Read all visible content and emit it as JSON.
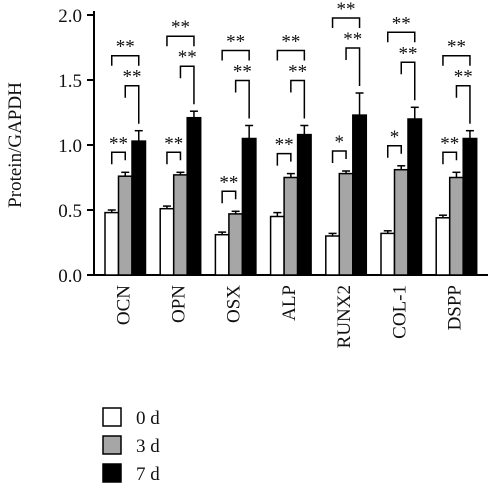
{
  "chart_data": {
    "type": "bar",
    "ylabel": "Protein/GAPDH",
    "xlabel": "",
    "ylim": [
      0,
      2.0
    ],
    "yticks": [
      "0.0",
      "0.5",
      "1.0",
      "1.5",
      "2.0"
    ],
    "categories": [
      "OCN",
      "OPN",
      "OSX",
      "ALP",
      "RUNX2",
      "COL-1",
      "DSPP"
    ],
    "series": [
      {
        "name": "0 d",
        "color": "#ffffff",
        "values": [
          0.48,
          0.51,
          0.31,
          0.45,
          0.3,
          0.32,
          0.44
        ],
        "errors": [
          0.02,
          0.02,
          0.02,
          0.03,
          0.02,
          0.02,
          0.02
        ]
      },
      {
        "name": "3 d",
        "color": "#a6a6a6",
        "values": [
          0.76,
          0.77,
          0.47,
          0.75,
          0.78,
          0.81,
          0.75
        ],
        "errors": [
          0.03,
          0.02,
          0.02,
          0.03,
          0.02,
          0.03,
          0.04
        ]
      },
      {
        "name": "7 d",
        "color": "#000000",
        "values": [
          1.03,
          1.21,
          1.05,
          1.08,
          1.23,
          1.2,
          1.05
        ],
        "errors": [
          0.08,
          0.05,
          0.1,
          0.07,
          0.17,
          0.09,
          0.06
        ]
      }
    ],
    "significance": [
      {
        "short": "**",
        "short2": "**",
        "long": "**"
      },
      {
        "short": "**",
        "short2": "**",
        "long": "**"
      },
      {
        "short": "**",
        "short2": "**",
        "long": "**"
      },
      {
        "short": "**",
        "short2": "**",
        "long": "**"
      },
      {
        "short": "*",
        "short2": "**",
        "long": "**"
      },
      {
        "short": "*",
        "short2": "**",
        "long": "**"
      },
      {
        "short": "**",
        "short2": "**",
        "long": "**"
      }
    ],
    "legend_position": "bottom-left"
  }
}
